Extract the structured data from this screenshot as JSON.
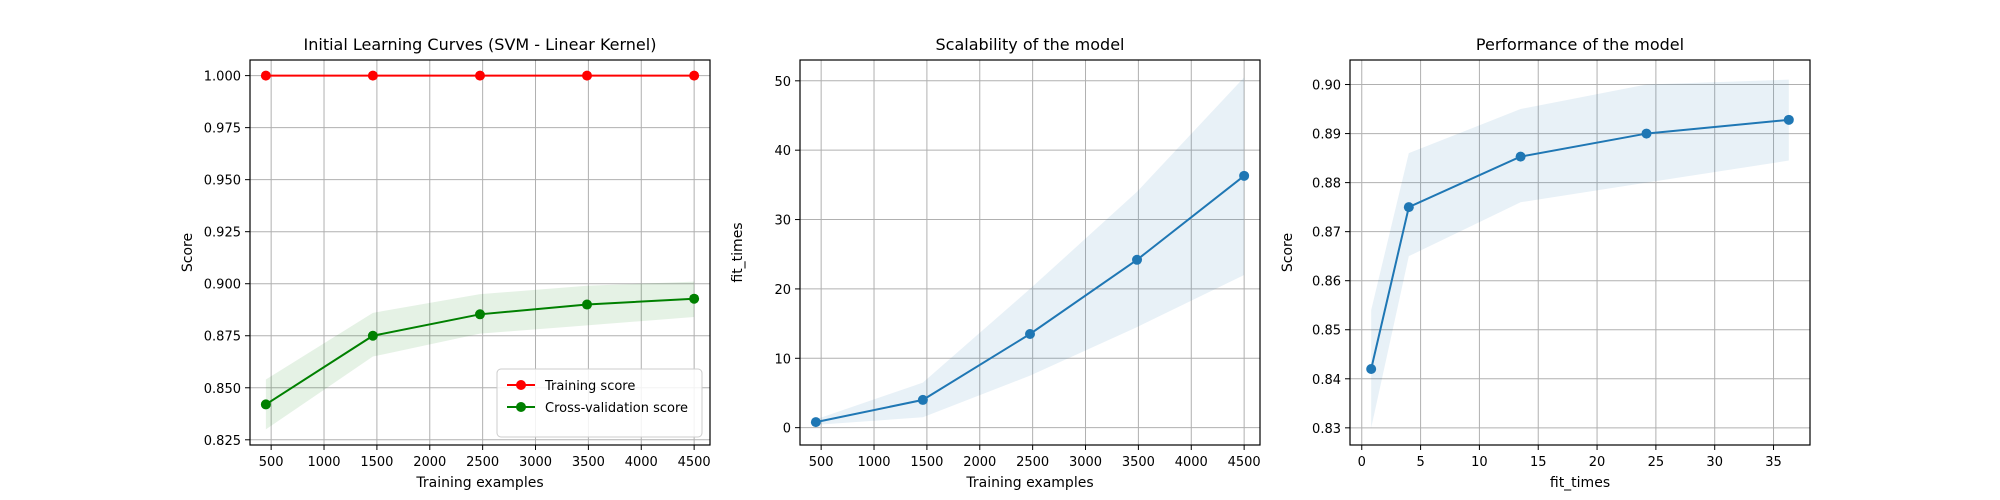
{
  "colors": {
    "training": "#ff0000",
    "cv": "#008000",
    "fit": "#1f77b4",
    "grid": "#b0b0b0",
    "axis": "#000000"
  },
  "chart_data": [
    {
      "type": "line",
      "title": "Initial Learning Curves (SVM - Linear Kernel)",
      "xlabel": "Training examples",
      "ylabel": "Score",
      "xlim": [
        300,
        4650
      ],
      "ylim": [
        0.8225,
        1.0075
      ],
      "xticks": [
        500,
        1000,
        1500,
        2000,
        2500,
        3000,
        3500,
        4000,
        4500
      ],
      "xtick_labels": [
        "500",
        "1000",
        "1500",
        "2000",
        "2500",
        "3000",
        "3500",
        "4000",
        "4500"
      ],
      "yticks": [
        0.825,
        0.85,
        0.875,
        0.9,
        0.925,
        0.95,
        0.975,
        1.0
      ],
      "ytick_labels": [
        "0.825",
        "0.850",
        "0.875",
        "0.900",
        "0.925",
        "0.950",
        "0.975",
        "1.000"
      ],
      "grid": true,
      "legend_position": "bottom-right",
      "x": [
        450,
        1462,
        2475,
        3487,
        4500
      ],
      "series": [
        {
          "name": "Training score",
          "color": "#ff0000",
          "values": [
            1.0,
            1.0,
            1.0,
            1.0,
            1.0
          ],
          "band_low": [
            1.0,
            1.0,
            1.0,
            1.0,
            1.0
          ],
          "band_high": [
            1.0,
            1.0,
            1.0,
            1.0,
            1.0
          ]
        },
        {
          "name": "Cross-validation score",
          "color": "#008000",
          "values": [
            0.842,
            0.875,
            0.8853,
            0.89,
            0.8928
          ],
          "band_low": [
            0.83,
            0.865,
            0.876,
            0.88,
            0.884
          ],
          "band_high": [
            0.854,
            0.886,
            0.895,
            0.899,
            0.901
          ]
        }
      ]
    },
    {
      "type": "line",
      "title": "Scalability of the model",
      "xlabel": "Training examples",
      "ylabel": "fit_times",
      "xlim": [
        300,
        4650
      ],
      "ylim": [
        -2.5,
        53
      ],
      "xticks": [
        500,
        1000,
        1500,
        2000,
        2500,
        3000,
        3500,
        4000,
        4500
      ],
      "xtick_labels": [
        "500",
        "1000",
        "1500",
        "2000",
        "2500",
        "3000",
        "3500",
        "4000",
        "4500"
      ],
      "yticks": [
        0,
        10,
        20,
        30,
        40,
        50
      ],
      "ytick_labels": [
        "0",
        "10",
        "20",
        "30",
        "40",
        "50"
      ],
      "grid": true,
      "x": [
        450,
        1462,
        2475,
        3487,
        4500
      ],
      "series": [
        {
          "color": "#1f77b4",
          "values": [
            0.8,
            4.0,
            13.5,
            24.2,
            36.3
          ],
          "band_low": [
            0.4,
            1.5,
            7.5,
            14.5,
            22.0
          ],
          "band_high": [
            1.2,
            6.5,
            20.0,
            34.0,
            50.5
          ]
        }
      ]
    },
    {
      "type": "line",
      "title": "Performance of the model",
      "xlabel": "fit_times",
      "ylabel": "Score",
      "xlim": [
        -1,
        38.1
      ],
      "ylim": [
        0.8265,
        0.905
      ],
      "xticks": [
        0,
        5,
        10,
        15,
        20,
        25,
        30,
        35
      ],
      "xtick_labels": [
        "0",
        "5",
        "10",
        "15",
        "20",
        "25",
        "30",
        "35"
      ],
      "yticks": [
        0.83,
        0.84,
        0.85,
        0.86,
        0.87,
        0.88,
        0.89,
        0.9
      ],
      "ytick_labels": [
        "0.83",
        "0.84",
        "0.85",
        "0.86",
        "0.87",
        "0.88",
        "0.89",
        "0.90"
      ],
      "grid": true,
      "x": [
        0.8,
        4.0,
        13.5,
        24.2,
        36.3
      ],
      "series": [
        {
          "color": "#1f77b4",
          "values": [
            0.842,
            0.875,
            0.8853,
            0.89,
            0.8928
          ],
          "band_low": [
            0.83,
            0.865,
            0.876,
            0.88,
            0.8845
          ],
          "band_high": [
            0.854,
            0.886,
            0.895,
            0.9,
            0.901
          ]
        }
      ]
    }
  ]
}
